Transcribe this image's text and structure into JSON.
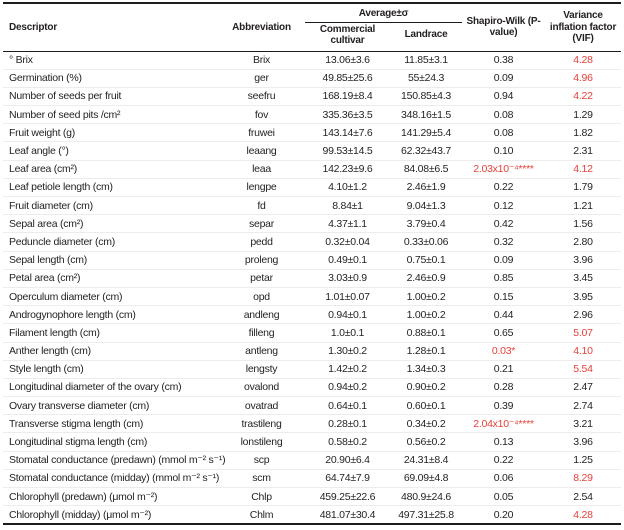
{
  "colors": {
    "accent_red": "#e8403a",
    "text": "#231f20",
    "rule": "#1c1c1c"
  },
  "table": {
    "headers": {
      "descriptor": "Descriptor",
      "abbreviation": "Abbreviation",
      "average_group": "Average±σ",
      "sub_commercial": "Commercial cultivar",
      "sub_landrace": "Landrace",
      "shapiro": "Shapiro-Wilk (P-value)",
      "vif": "Variance inflation factor (VIF)"
    },
    "rows": [
      {
        "descriptor": "° Brix",
        "abbreviation": "Brix",
        "commercial": "13.06±3.6",
        "landrace": "11.85±3.1",
        "shapiro": "0.38",
        "shapiro_red": false,
        "vif": "4.28",
        "vif_red": true
      },
      {
        "descriptor": "Germination (%)",
        "abbreviation": "ger",
        "commercial": "49.85±25.6",
        "landrace": "55±24.3",
        "shapiro": "0.09",
        "shapiro_red": false,
        "vif": "4.96",
        "vif_red": true
      },
      {
        "descriptor": "Number of seeds per fruit",
        "abbreviation": "seefru",
        "commercial": "168.19±8.4",
        "landrace": "150.85±4.3",
        "shapiro": "0.94",
        "shapiro_red": false,
        "vif": "4.22",
        "vif_red": true
      },
      {
        "descriptor": "Number of seed pits /cm²",
        "abbreviation": "fov",
        "commercial": "335.36±3.5",
        "landrace": "348.16±1.5",
        "shapiro": "0.08",
        "shapiro_red": false,
        "vif": "1.29",
        "vif_red": false
      },
      {
        "descriptor": "Fruit weight (g)",
        "abbreviation": "fruwei",
        "commercial": "143.14±7.6",
        "landrace": "141.29±5.4",
        "shapiro": "0.08",
        "shapiro_red": false,
        "vif": "1.82",
        "vif_red": false
      },
      {
        "descriptor": "Leaf angle (°)",
        "abbreviation": "leaang",
        "commercial": "99.53±14.5",
        "landrace": "62.32±43.7",
        "shapiro": "0.10",
        "shapiro_red": false,
        "vif": "2.31",
        "vif_red": false
      },
      {
        "descriptor": "Leaf area (cm²)",
        "abbreviation": "leaa",
        "commercial": "142.23±9.6",
        "landrace": "84.08±6.5",
        "shapiro": "2.03x10⁻⁴****",
        "shapiro_red": true,
        "vif": "4.12",
        "vif_red": true
      },
      {
        "descriptor": "Leaf petiole length (cm)",
        "abbreviation": "lengpe",
        "commercial": "4.10±1.2",
        "landrace": "2.46±1.9",
        "shapiro": "0.22",
        "shapiro_red": false,
        "vif": "1.79",
        "vif_red": false
      },
      {
        "descriptor": "Fruit diameter (cm)",
        "abbreviation": "fd",
        "commercial": "8.84±1",
        "landrace": "9.04±1.3",
        "shapiro": "0.12",
        "shapiro_red": false,
        "vif": "1.21",
        "vif_red": false
      },
      {
        "descriptor": "Sepal area (cm²)",
        "abbreviation": "separ",
        "commercial": "4.37±1.1",
        "landrace": "3.79±0.4",
        "shapiro": "0.42",
        "shapiro_red": false,
        "vif": "1.56",
        "vif_red": false
      },
      {
        "descriptor": "Peduncle diameter (cm)",
        "abbreviation": "pedd",
        "commercial": "0.32±0.04",
        "landrace": "0.33±0.06",
        "shapiro": "0.32",
        "shapiro_red": false,
        "vif": "2.80",
        "vif_red": false
      },
      {
        "descriptor": "Sepal length (cm)",
        "abbreviation": "proleng",
        "commercial": "0.49±0.1",
        "landrace": "0.75±0.1",
        "shapiro": "0.09",
        "shapiro_red": false,
        "vif": "3.96",
        "vif_red": false
      },
      {
        "descriptor": "Petal area (cm²)",
        "abbreviation": "petar",
        "commercial": "3.03±0.9",
        "landrace": "2.46±0.9",
        "shapiro": "0.85",
        "shapiro_red": false,
        "vif": "3.45",
        "vif_red": false
      },
      {
        "descriptor": "Operculum diameter (cm)",
        "abbreviation": "opd",
        "commercial": "1.01±0.07",
        "landrace": "1.00±0.2",
        "shapiro": "0.15",
        "shapiro_red": false,
        "vif": "3.95",
        "vif_red": false
      },
      {
        "descriptor": "Androgynophore length (cm)",
        "abbreviation": "andleng",
        "commercial": "0.94±0.1",
        "landrace": "1.00±0.2",
        "shapiro": "0.44",
        "shapiro_red": false,
        "vif": "2.96",
        "vif_red": false
      },
      {
        "descriptor": "Filament length (cm)",
        "abbreviation": "filleng",
        "commercial": "1.0±0.1",
        "landrace": "0.88±0.1",
        "shapiro": "0.65",
        "shapiro_red": false,
        "vif": "5.07",
        "vif_red": true
      },
      {
        "descriptor": "Anther length (cm)",
        "abbreviation": "antleng",
        "commercial": "1.30±0.2",
        "landrace": "1.28±0.1",
        "shapiro": "0.03*",
        "shapiro_red": true,
        "vif": "4.10",
        "vif_red": true
      },
      {
        "descriptor": "Style length (cm)",
        "abbreviation": "lengsty",
        "commercial": "1.42±0.2",
        "landrace": "1.34±0.3",
        "shapiro": "0.21",
        "shapiro_red": false,
        "vif": "5.54",
        "vif_red": true
      },
      {
        "descriptor": "Longitudinal diameter of the ovary (cm)",
        "abbreviation": "ovalond",
        "commercial": "0.94±0.2",
        "landrace": "0.90±0.2",
        "shapiro": "0.28",
        "shapiro_red": false,
        "vif": "2.47",
        "vif_red": false
      },
      {
        "descriptor": "Ovary transverse diameter (cm)",
        "abbreviation": "ovatrad",
        "commercial": "0.64±0.1",
        "landrace": "0.60±0.1",
        "shapiro": "0.39",
        "shapiro_red": false,
        "vif": "2.74",
        "vif_red": false
      },
      {
        "descriptor": "Transverse stigma length (cm)",
        "abbreviation": "trastileng",
        "commercial": "0.28±0.1",
        "landrace": "0.34±0.2",
        "shapiro": "2.04x10⁻⁴****",
        "shapiro_red": true,
        "vif": "3.21",
        "vif_red": false
      },
      {
        "descriptor": "Longitudinal stigma length (cm)",
        "abbreviation": "lonstileng",
        "commercial": "0.58±0.2",
        "landrace": "0.56±0.2",
        "shapiro": "0.13",
        "shapiro_red": false,
        "vif": "3.96",
        "vif_red": false
      },
      {
        "descriptor": "Stomatal conductance (predawn) (mmol m⁻² s⁻¹)",
        "abbreviation": "scp",
        "commercial": "20.90±6.4",
        "landrace": "24.31±8.4",
        "shapiro": "0.22",
        "shapiro_red": false,
        "vif": "1.25",
        "vif_red": false
      },
      {
        "descriptor": "Stomatal conductance (midday) (mmol m⁻² s⁻¹)",
        "abbreviation": "scm",
        "commercial": "64.74±7.9",
        "landrace": "69.09±4.8",
        "shapiro": "0.06",
        "shapiro_red": false,
        "vif": "8.29",
        "vif_red": true
      },
      {
        "descriptor": "Chlorophyll (predawn) (μmol m⁻²)",
        "abbreviation": "Chlp",
        "commercial": "459.25±22.6",
        "landrace": "480.9±24.6",
        "shapiro": "0.05",
        "shapiro_red": false,
        "vif": "2.54",
        "vif_red": false
      },
      {
        "descriptor": "Chlorophyll (midday) (μmol m⁻²)",
        "abbreviation": "Chlm",
        "commercial": "481.07±30.4",
        "landrace": "497.31±25.8",
        "shapiro": "0.20",
        "shapiro_red": false,
        "vif": "4.28",
        "vif_red": true
      }
    ]
  }
}
